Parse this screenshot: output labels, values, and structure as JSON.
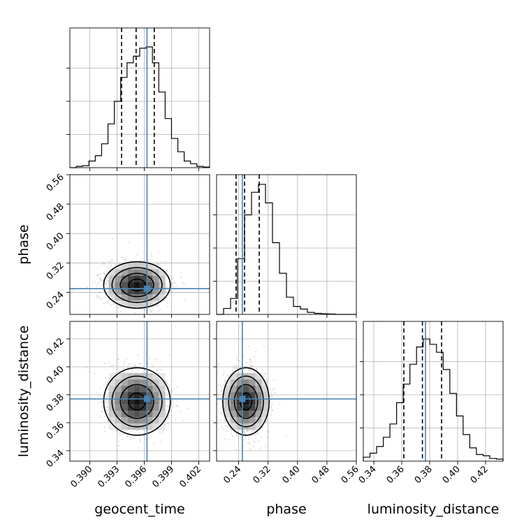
{
  "colors": {
    "truth": "#4682b4",
    "hist": "#000000",
    "grid": "#b0b0b0",
    "quantile": "#000000"
  },
  "chart_data": {
    "type": "corner",
    "parameters": [
      "geocent_time",
      "phase",
      "luminosity_distance"
    ],
    "labels": [
      "geocent_time",
      "phase",
      "luminosity_distance"
    ],
    "truths": {
      "geocent_time": 0.3963,
      "phase": 0.25,
      "luminosity_distance": 0.377
    },
    "quantiles": {
      "geocent_time": [
        0.3935,
        0.3951,
        0.3971
      ],
      "phase": [
        0.233,
        0.256,
        0.296
      ],
      "luminosity_distance": [
        0.3615,
        0.3748,
        0.3885
      ]
    },
    "ranges": {
      "geocent_time": [
        0.3878,
        0.4032
      ],
      "phase": [
        0.18,
        0.56
      ],
      "luminosity_distance": [
        0.3325,
        0.4325
      ]
    },
    "ticks": {
      "geocent_time": [
        "0.390",
        "0.393",
        "0.396",
        "0.399",
        "0.402"
      ],
      "phase": [
        "0.24",
        "0.32",
        "0.40",
        "0.48",
        "0.56"
      ],
      "luminosity_distance": [
        "0.34",
        "0.36",
        "0.38",
        "0.40",
        "0.42"
      ]
    },
    "histograms": {
      "geocent_time": [
        0.0,
        0.01,
        0.015,
        0.05,
        0.09,
        0.18,
        0.33,
        0.5,
        0.68,
        0.79,
        0.84,
        0.9,
        0.91,
        0.79,
        0.57,
        0.37,
        0.22,
        0.12,
        0.05,
        0.03,
        0.01,
        0.005
      ],
      "phase": [
        0.0,
        0.045,
        0.12,
        0.42,
        0.75,
        0.92,
        0.98,
        0.84,
        0.54,
        0.31,
        0.13,
        0.06,
        0.04,
        0.015,
        0.008,
        0.005,
        0.003,
        0.0,
        0.0,
        0.0
      ],
      "luminosity_distance": [
        0.03,
        0.06,
        0.11,
        0.18,
        0.28,
        0.44,
        0.58,
        0.73,
        0.86,
        0.92,
        0.88,
        0.82,
        0.69,
        0.51,
        0.34,
        0.2,
        0.1,
        0.05,
        0.04,
        0.02,
        0.015
      ]
    },
    "correlations": {
      "geocent_time|phase": 0.0,
      "geocent_time|luminosity_distance": 0.0,
      "phase|luminosity_distance": 0.0
    },
    "sigma": {
      "geocent_time": 0.00175,
      "phase": 0.03,
      "luminosity_distance": 0.0115
    },
    "centers": {
      "geocent_time": 0.3952,
      "phase": 0.26,
      "luminosity_distance": 0.3752
    },
    "contour_levels_sigma": [
      0.5,
      1.0,
      1.5,
      2.0
    ],
    "grid": true
  }
}
